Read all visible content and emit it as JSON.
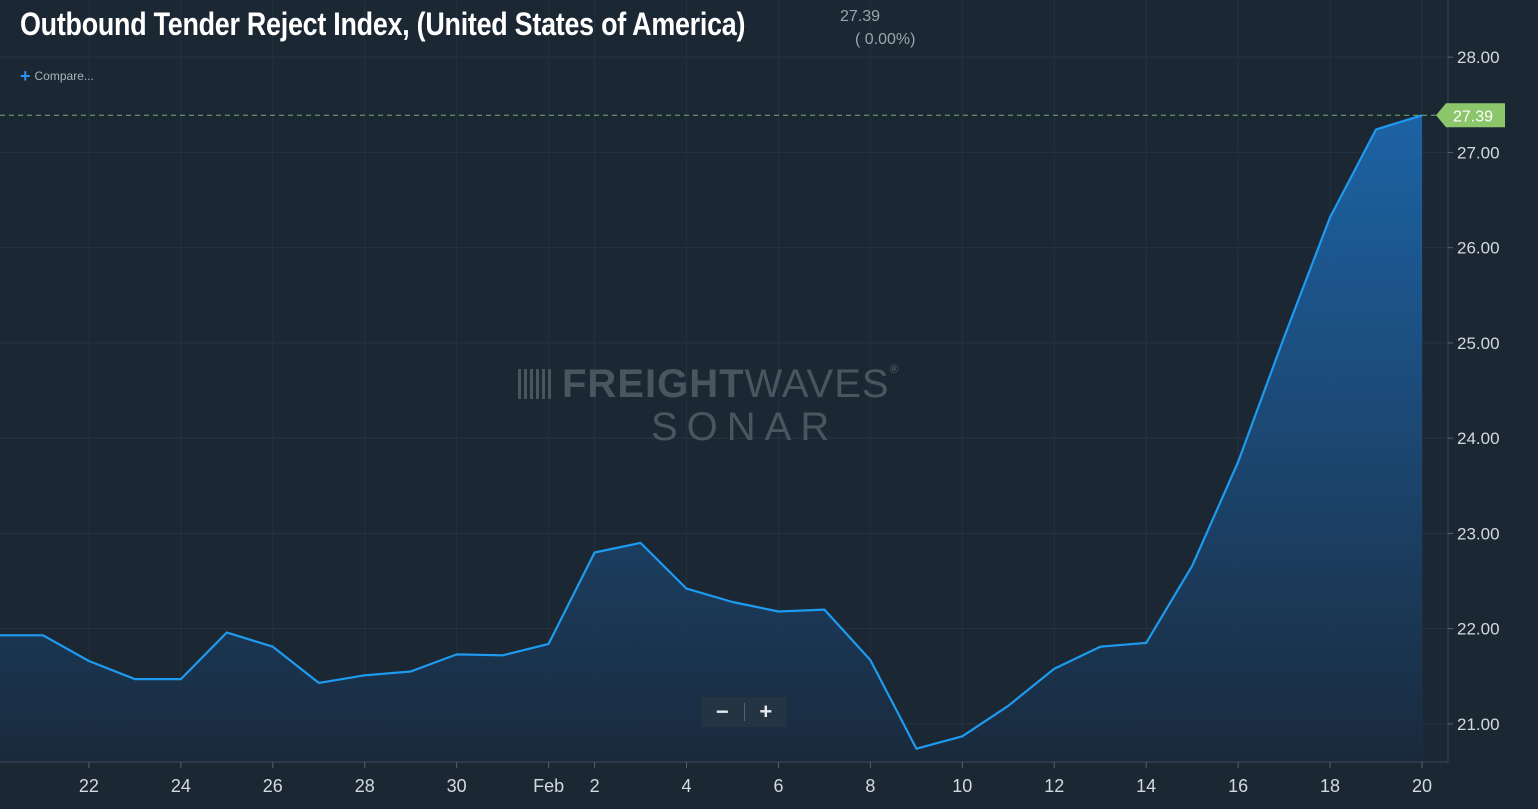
{
  "header": {
    "title": "Outbound Tender Reject Index, (United States of America)",
    "last_value": "27.39",
    "last_change": "( 0.00%)",
    "compare_label": "Compare..."
  },
  "watermark": {
    "brand_bold": "FREIGHT",
    "brand_thin": "WAVES",
    "trademark": "®",
    "product": "SONAR"
  },
  "zoom": {
    "minus": "−",
    "plus": "+"
  },
  "colors": {
    "background": "#1b2733",
    "line": "#1e9bf0",
    "price_tag": "#8cc66a",
    "grid": "#2a3744"
  },
  "chart_data": {
    "type": "area",
    "x_tick_labels": [
      "22",
      "24",
      "26",
      "28",
      "30",
      "Feb",
      "2",
      "4",
      "6",
      "8",
      "10",
      "12",
      "14",
      "16",
      "18",
      "20"
    ],
    "y_tick_labels": [
      "21.00",
      "22.00",
      "23.00",
      "24.00",
      "25.00",
      "26.00",
      "27.00",
      "28.00"
    ],
    "ylim": [
      20.6,
      28.6
    ],
    "xlim": [
      "2023-01-20",
      "2023-02-20"
    ],
    "last_value_label": "27.39",
    "series": [
      {
        "x": [
          "2023-01-21",
          "2023-01-22",
          "2023-01-23",
          "2023-01-24",
          "2023-01-25",
          "2023-01-26",
          "2023-01-27",
          "2023-01-28",
          "2023-01-29",
          "2023-01-30",
          "2023-01-31",
          "2023-02-01",
          "2023-02-02",
          "2023-02-03",
          "2023-02-04",
          "2023-02-05",
          "2023-02-06",
          "2023-02-07",
          "2023-02-08",
          "2023-02-09",
          "2023-02-10",
          "2023-02-11",
          "2023-02-12",
          "2023-02-13",
          "2023-02-14",
          "2023-02-15",
          "2023-02-16",
          "2023-02-17",
          "2023-02-18",
          "2023-02-19",
          "2023-02-20"
        ],
        "values": [
          21.93,
          21.66,
          21.47,
          21.47,
          21.96,
          21.81,
          21.43,
          21.51,
          21.55,
          21.73,
          21.72,
          21.84,
          22.8,
          22.9,
          22.42,
          22.28,
          22.18,
          22.2,
          21.67,
          20.74,
          20.87,
          21.19,
          21.58,
          21.81,
          21.85,
          22.66,
          23.75,
          25.06,
          26.32,
          27.24,
          27.39
        ]
      }
    ]
  }
}
